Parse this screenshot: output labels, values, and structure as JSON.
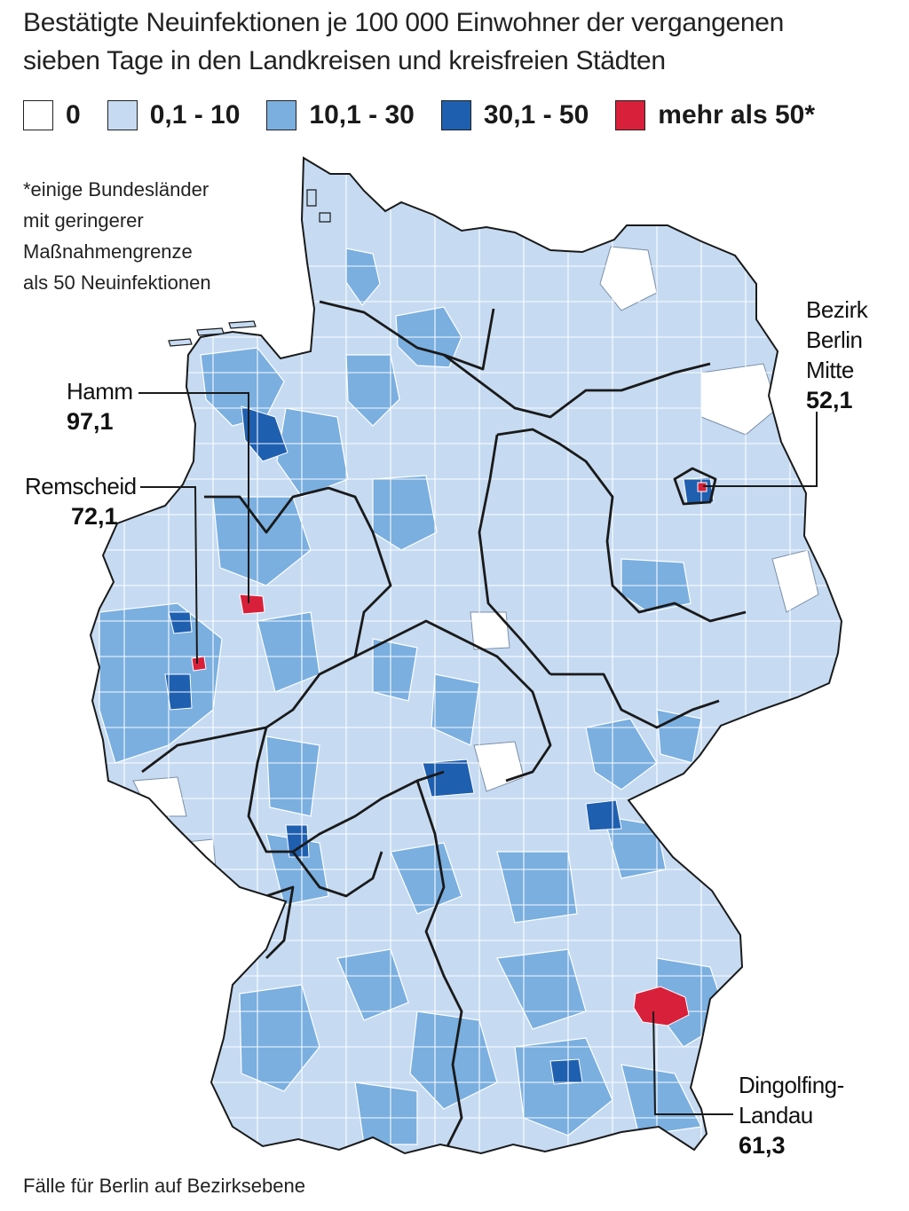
{
  "title_line1": "Bestätigte Neuinfektionen je 100 000 Einwohner der vergangenen",
  "title_line2": "sieben Tage in den Landkreisen und kreisfreien Städten",
  "legend": [
    {
      "label": "0",
      "color": "#ffffff"
    },
    {
      "label": "0,1 - 10",
      "color": "#c6dbf2"
    },
    {
      "label": "10,1 - 30",
      "color": "#7aafe0"
    },
    {
      "label": "30,1 - 50",
      "color": "#1f5fb0"
    },
    {
      "label": "mehr als 50*",
      "color": "#d9203a"
    }
  ],
  "note": {
    "line1": "*einige Bundesländer",
    "line2": "mit geringerer",
    "line3": "Maßnahmengrenze",
    "line4": "als 50 Neuinfektionen"
  },
  "callouts": {
    "hamm": {
      "name": "Hamm",
      "value": "97,1"
    },
    "remscheid": {
      "name": "Remscheid",
      "value": "72,1"
    },
    "berlin": {
      "name1": "Bezirk",
      "name2": "Berlin",
      "name3": "Mitte",
      "value": "52,1"
    },
    "dingolfing": {
      "name1": "Dingolfing-",
      "name2": "Landau",
      "value": "61,3"
    }
  },
  "footnote": "Fälle für Berlin auf Bezirksebene",
  "colors": {
    "zero": "#ffffff",
    "light": "#c6dbf2",
    "medium": "#7aafe0",
    "dark": "#1f5fb0",
    "red": "#d9203a",
    "border": "#1a1a1a"
  }
}
